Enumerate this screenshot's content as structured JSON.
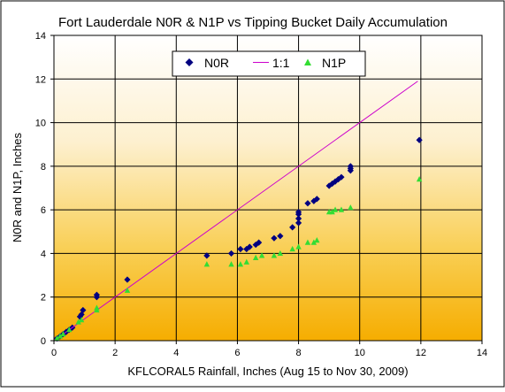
{
  "chart_data": {
    "type": "scatter",
    "title": "Fort Lauderdale N0R & N1P vs Tipping Bucket Daily Accumulation",
    "xlabel": "KFLCORAL5 Rainfall, Inches (Aug 15 to Nov 30, 2009)",
    "ylabel": "N0R and N1P, Inches",
    "xlim": [
      0,
      14
    ],
    "ylim": [
      0,
      14
    ],
    "x_ticks": [
      "0",
      "2",
      "4",
      "6",
      "8",
      "10",
      "12",
      "14"
    ],
    "y_ticks": [
      "0",
      "2",
      "4",
      "6",
      "8",
      "10",
      "12",
      "14"
    ],
    "grid": true,
    "background": "gradient white (top) to orange (bottom)",
    "legend_position": "top, inside plot",
    "series": [
      {
        "name": "N0R",
        "marker": "diamond",
        "color": "#000080",
        "points": [
          [
            0.1,
            0.1
          ],
          [
            0.2,
            0.2
          ],
          [
            0.3,
            0.3
          ],
          [
            0.4,
            0.4
          ],
          [
            0.5,
            0.5
          ],
          [
            0.6,
            0.6
          ],
          [
            0.85,
            1.1
          ],
          [
            0.9,
            1.2
          ],
          [
            0.95,
            1.4
          ],
          [
            1.4,
            2.0
          ],
          [
            1.4,
            2.1
          ],
          [
            2.4,
            2.8
          ],
          [
            5.0,
            3.9
          ],
          [
            5.8,
            4.0
          ],
          [
            6.1,
            4.2
          ],
          [
            6.3,
            4.2
          ],
          [
            6.4,
            4.3
          ],
          [
            6.6,
            4.4
          ],
          [
            6.7,
            4.5
          ],
          [
            7.2,
            4.7
          ],
          [
            7.4,
            4.8
          ],
          [
            7.8,
            5.2
          ],
          [
            8.0,
            5.4
          ],
          [
            8.0,
            5.6
          ],
          [
            8.0,
            5.8
          ],
          [
            8.0,
            5.9
          ],
          [
            8.3,
            6.3
          ],
          [
            8.5,
            6.4
          ],
          [
            8.6,
            6.5
          ],
          [
            9.0,
            7.1
          ],
          [
            9.1,
            7.2
          ],
          [
            9.2,
            7.3
          ],
          [
            9.3,
            7.4
          ],
          [
            9.4,
            7.5
          ],
          [
            9.7,
            7.8
          ],
          [
            9.7,
            7.9
          ],
          [
            9.7,
            8.0
          ],
          [
            11.95,
            9.2
          ]
        ]
      },
      {
        "name": "1:1",
        "marker": "line",
        "color": "#cc00cc",
        "points": [
          [
            0,
            0
          ],
          [
            11.9,
            11.9
          ]
        ]
      },
      {
        "name": "N1P",
        "marker": "triangle",
        "color": "#33dd33",
        "points": [
          [
            0.1,
            0.1
          ],
          [
            0.2,
            0.2
          ],
          [
            0.3,
            0.3
          ],
          [
            0.5,
            0.5
          ],
          [
            0.8,
            0.85
          ],
          [
            0.9,
            0.95
          ],
          [
            1.4,
            1.4
          ],
          [
            1.4,
            1.5
          ],
          [
            2.4,
            2.3
          ],
          [
            5.0,
            3.5
          ],
          [
            5.8,
            3.5
          ],
          [
            6.1,
            3.5
          ],
          [
            6.3,
            3.6
          ],
          [
            6.6,
            3.8
          ],
          [
            6.8,
            3.9
          ],
          [
            7.2,
            3.9
          ],
          [
            7.4,
            4.0
          ],
          [
            7.8,
            4.2
          ],
          [
            8.0,
            4.3
          ],
          [
            8.3,
            4.5
          ],
          [
            8.5,
            4.5
          ],
          [
            8.6,
            4.6
          ],
          [
            9.0,
            5.9
          ],
          [
            9.1,
            5.9
          ],
          [
            9.2,
            6.0
          ],
          [
            9.4,
            6.0
          ],
          [
            9.7,
            6.1
          ],
          [
            11.95,
            7.4
          ]
        ]
      }
    ]
  }
}
